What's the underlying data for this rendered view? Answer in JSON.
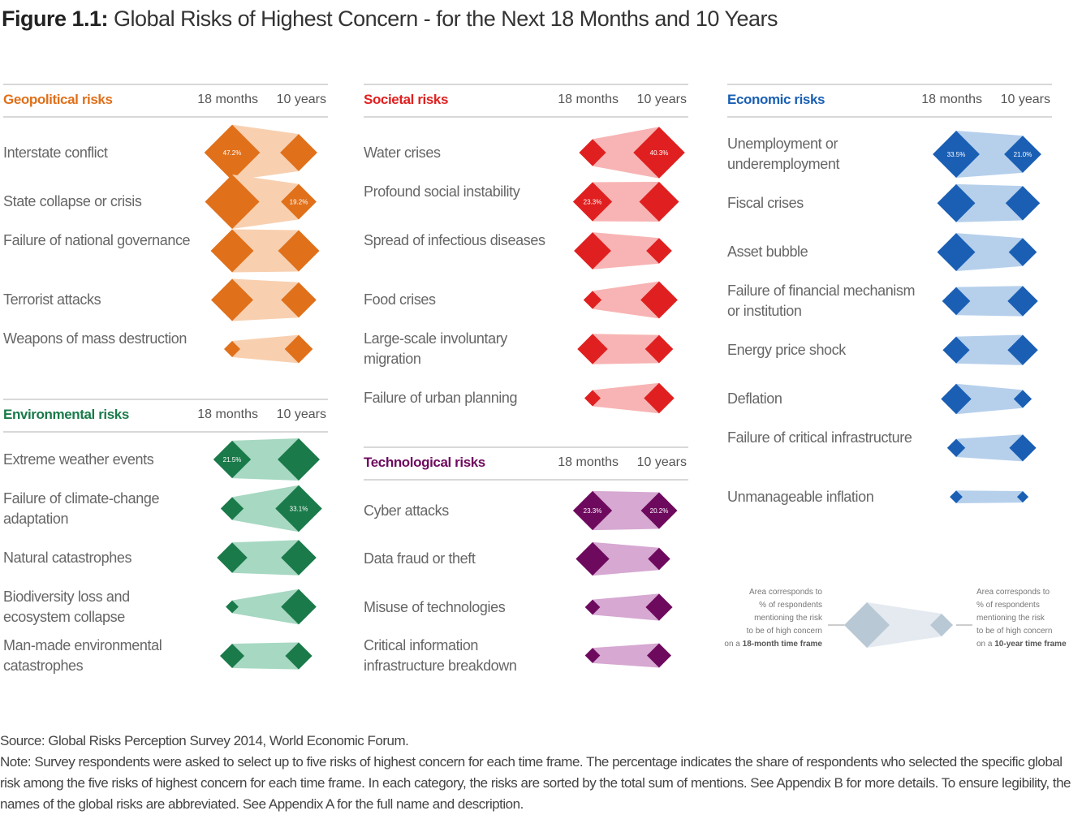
{
  "title": {
    "prefix": "Figure 1.1:",
    "text": "Global Risks of Highest Concern - for the Next 18 Months and 10 Years"
  },
  "chart_data": {
    "type": "diamond-comparison",
    "columns": [
      "18 months",
      "10 years"
    ],
    "panels": [
      {
        "name": "Geopolitical risks",
        "color": "#e0701a",
        "fill": "#f8d0b0",
        "risks": [
          {
            "label": "Interstate conflict",
            "v18": 47.2,
            "v10": 21.0,
            "label18": "47.2%",
            "label10": ""
          },
          {
            "label": "State collapse or crisis",
            "v18": 45.0,
            "v10": 19.2,
            "label18": "",
            "label10": "19.2%"
          },
          {
            "label": "Failure of national governance",
            "v18": 28.0,
            "v10": 26.0,
            "label18": "",
            "label10": ""
          },
          {
            "label": "Terrorist attacks",
            "v18": 27.0,
            "v10": 19.0,
            "label18": "",
            "label10": ""
          },
          {
            "label": "Weapons of mass destruction",
            "v18": 4.0,
            "v10": 12.0,
            "label18": "",
            "label10": ""
          }
        ]
      },
      {
        "name": "Environmental risks",
        "color": "#1a7a4a",
        "fill": "#a6d8c2",
        "risks": [
          {
            "label": "Extreme weather events",
            "v18": 21.5,
            "v10": 27.0,
            "label18": "21.5%",
            "label10": ""
          },
          {
            "label": "Failure of climate-change adaptation",
            "v18": 8.0,
            "v10": 33.1,
            "label18": "",
            "label10": "33.1%"
          },
          {
            "label": "Natural catastrophes",
            "v18": 14.0,
            "v10": 19.0,
            "label18": "",
            "label10": ""
          },
          {
            "label": "Biodiversity loss and ecosystem collapse",
            "v18": 2.5,
            "v10": 19.0,
            "label18": "",
            "label10": ""
          },
          {
            "label": "Man-made environmental catastrophes",
            "v18": 9.0,
            "v10": 11.0,
            "label18": "",
            "label10": ""
          }
        ]
      },
      {
        "name": "Societal risks",
        "color": "#e02020",
        "fill": "#f8b4b4",
        "risks": [
          {
            "label": "Water crises",
            "v18": 11.0,
            "v10": 40.3,
            "label18": "",
            "label10": "40.3%"
          },
          {
            "label": "Profound social instability",
            "v18": 23.3,
            "v10": 24.0,
            "label18": "23.3%",
            "label10": ""
          },
          {
            "label": "Spread of infectious diseases",
            "v18": 21.0,
            "v10": 10.0,
            "label18": "",
            "label10": ""
          },
          {
            "label": "Food crises",
            "v18": 5.0,
            "v10": 21.0,
            "label18": "",
            "label10": ""
          },
          {
            "label": "Large-scale involuntary migration",
            "v18": 14.0,
            "v10": 12.0,
            "label18": "",
            "label10": ""
          },
          {
            "label": "Failure of urban planning",
            "v18": 4.0,
            "v10": 14.0,
            "label18": "",
            "label10": ""
          }
        ]
      },
      {
        "name": "Technological risks",
        "color": "#6e0a5e",
        "fill": "#d6a8d2",
        "risks": [
          {
            "label": "Cyber attacks",
            "v18": 23.3,
            "v10": 20.2,
            "label18": "23.3%",
            "label10": "20.2%"
          },
          {
            "label": "Data fraud or theft",
            "v18": 17.0,
            "v10": 7.5,
            "label18": "",
            "label10": ""
          },
          {
            "label": "Misuse of technologies",
            "v18": 3.5,
            "v10": 11.0,
            "label18": "",
            "label10": ""
          },
          {
            "label": "Critical information infrastructure breakdown",
            "v18": 3.5,
            "v10": 9.0,
            "label18": "",
            "label10": ""
          }
        ]
      },
      {
        "name": "Economic risks",
        "color": "#1a5fb4",
        "fill": "#b6d0ec",
        "risks": [
          {
            "label": "Unemployment or underemployment",
            "v18": 33.5,
            "v10": 21.0,
            "label18": "33.5%",
            "label10": "21.0%"
          },
          {
            "label": "Fiscal crises",
            "v18": 22.0,
            "v10": 18.0,
            "label18": "",
            "label10": ""
          },
          {
            "label": "Asset bubble",
            "v18": 22.0,
            "v10": 12.0,
            "label18": "",
            "label10": ""
          },
          {
            "label": "Failure of financial mechanism or institution",
            "v18": 12.0,
            "v10": 14.0,
            "label18": "",
            "label10": ""
          },
          {
            "label": "Energy price shock",
            "v18": 11.0,
            "v10": 14.0,
            "label18": "",
            "label10": ""
          },
          {
            "label": "Deflation",
            "v18": 14.0,
            "v10": 5.0,
            "label18": "",
            "label10": ""
          },
          {
            "label": "Failure of critical infrastructure",
            "v18": 5.0,
            "v10": 11.0,
            "label18": "",
            "label10": ""
          },
          {
            "label": "Unmanageable inflation",
            "v18": 2.5,
            "v10": 2.0,
            "label18": "",
            "label10": ""
          }
        ]
      }
    ],
    "legend": {
      "left": {
        "line1": "Area corresponds to",
        "line2": "% of respondents",
        "line3": "mentioning the risk",
        "line4": "to be of high concern",
        "line5_pre": "on a",
        "line5_bold": "18-month time frame"
      },
      "right": {
        "line1": "Area corresponds to",
        "line2": "% of respondents",
        "line3": "mentioning the risk",
        "line4": "to be of high concern",
        "line5_pre": "on a",
        "line5_bold": "10-year time frame"
      },
      "color": "#b8c8d4",
      "fill": "#e4eaf0"
    }
  },
  "source": {
    "line1": "Source: Global Risks Perception Survey 2014, World Economic Forum.",
    "note": "Note: Survey respondents were asked to select up to five risks of highest concern for each time frame. The percentage indicates the share of respondents who selected the specific global risk among the five risks of highest concern for each time frame.  In each category, the risks are sorted by the total sum of mentions. See Appendix B for more details. To ensure legibility, the names of the global risks are abbreviated. See Appendix A for the full name and description."
  }
}
